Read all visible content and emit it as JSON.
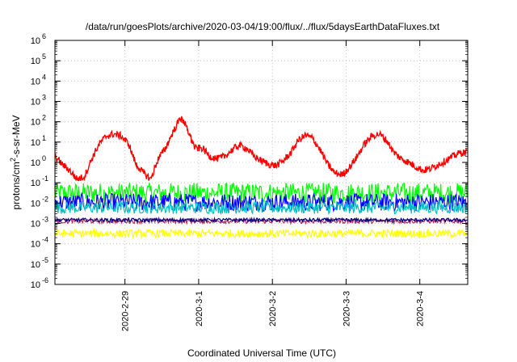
{
  "chart_data": {
    "type": "line",
    "title": "/data/run/goesPlots/archive/2020-03-04/19:00/flux/../flux/5daysEarthDataFluxes.txt",
    "xlabel": "Coordinated Universal Time (UTC)",
    "ylabel": "protons/cm²-s-sr-MeV",
    "ylim": [
      1e-06,
      1000000.0
    ],
    "yscale": "log",
    "xlim": [
      0,
      5.6
    ],
    "x_tick_positions": [
      0.95,
      1.95,
      2.95,
      3.95,
      4.95
    ],
    "x_tick_labels": [
      "2020-2-29",
      "2020-3-1",
      "2020-3-2",
      "2020-3-3",
      "2020-3-4"
    ],
    "y_tick_labels": [
      {
        "base": "10",
        "exp": "-6"
      },
      {
        "base": "10",
        "exp": "-5"
      },
      {
        "base": "10",
        "exp": "-4"
      },
      {
        "base": "10",
        "exp": "-3"
      },
      {
        "base": "10",
        "exp": "-2"
      },
      {
        "base": "10",
        "exp": "-1"
      },
      {
        "base": "10",
        "exp": "0"
      },
      {
        "base": "10",
        "exp": "1"
      },
      {
        "base": "10",
        "exp": "2"
      },
      {
        "base": "10",
        "exp": "3"
      },
      {
        "base": "10",
        "exp": "4"
      },
      {
        "base": "10",
        "exp": "5"
      },
      {
        "base": "10",
        "exp": "6"
      }
    ],
    "grid": true,
    "series": [
      {
        "color": "#ff0000",
        "x": [
          0.0,
          0.1,
          0.2,
          0.3,
          0.4,
          0.5,
          0.6,
          0.7,
          0.8,
          0.9,
          1.0,
          1.1,
          1.2,
          1.3,
          1.4,
          1.5,
          1.6,
          1.7,
          1.75,
          1.8,
          1.9,
          2.0,
          2.1,
          2.2,
          2.3,
          2.4,
          2.5,
          2.6,
          2.7,
          2.8,
          2.9,
          3.0,
          3.1,
          3.2,
          3.3,
          3.4,
          3.5,
          3.6,
          3.7,
          3.8,
          3.9,
          4.0,
          4.1,
          4.2,
          4.3,
          4.4,
          4.5,
          4.6,
          4.7,
          4.8,
          4.9,
          5.0,
          5.1,
          5.2,
          5.3,
          5.4,
          5.5,
          5.6
        ],
        "values": [
          2,
          0.8,
          0.4,
          0.15,
          0.2,
          1.5,
          8,
          20,
          25,
          20,
          8,
          0.8,
          0.3,
          0.15,
          1.5,
          5,
          30,
          150,
          100,
          40,
          5,
          5,
          2,
          1.5,
          2,
          4,
          7,
          5,
          2,
          1.2,
          0.8,
          0.7,
          1.2,
          3,
          12,
          22,
          15,
          4,
          0.8,
          0.3,
          0.25,
          0.6,
          2,
          8,
          20,
          25,
          12,
          3,
          1.5,
          1,
          0.6,
          0.4,
          0.5,
          0.8,
          1.2,
          2,
          3,
          3
        ]
      },
      {
        "color": "#00ff00",
        "band": [
          0.01,
          0.1
        ]
      },
      {
        "color": "#0000ff",
        "band": [
          0.004,
          0.03
        ]
      },
      {
        "color": "#00c0c0",
        "band": [
          0.003,
          0.012
        ]
      },
      {
        "color": "#b03060",
        "band": [
          0.001,
          0.0017
        ]
      },
      {
        "color": "#000080",
        "band": [
          0.0012,
          0.0018
        ]
      },
      {
        "color": "#ffff00",
        "band": [
          0.0002,
          0.0005
        ]
      }
    ]
  }
}
